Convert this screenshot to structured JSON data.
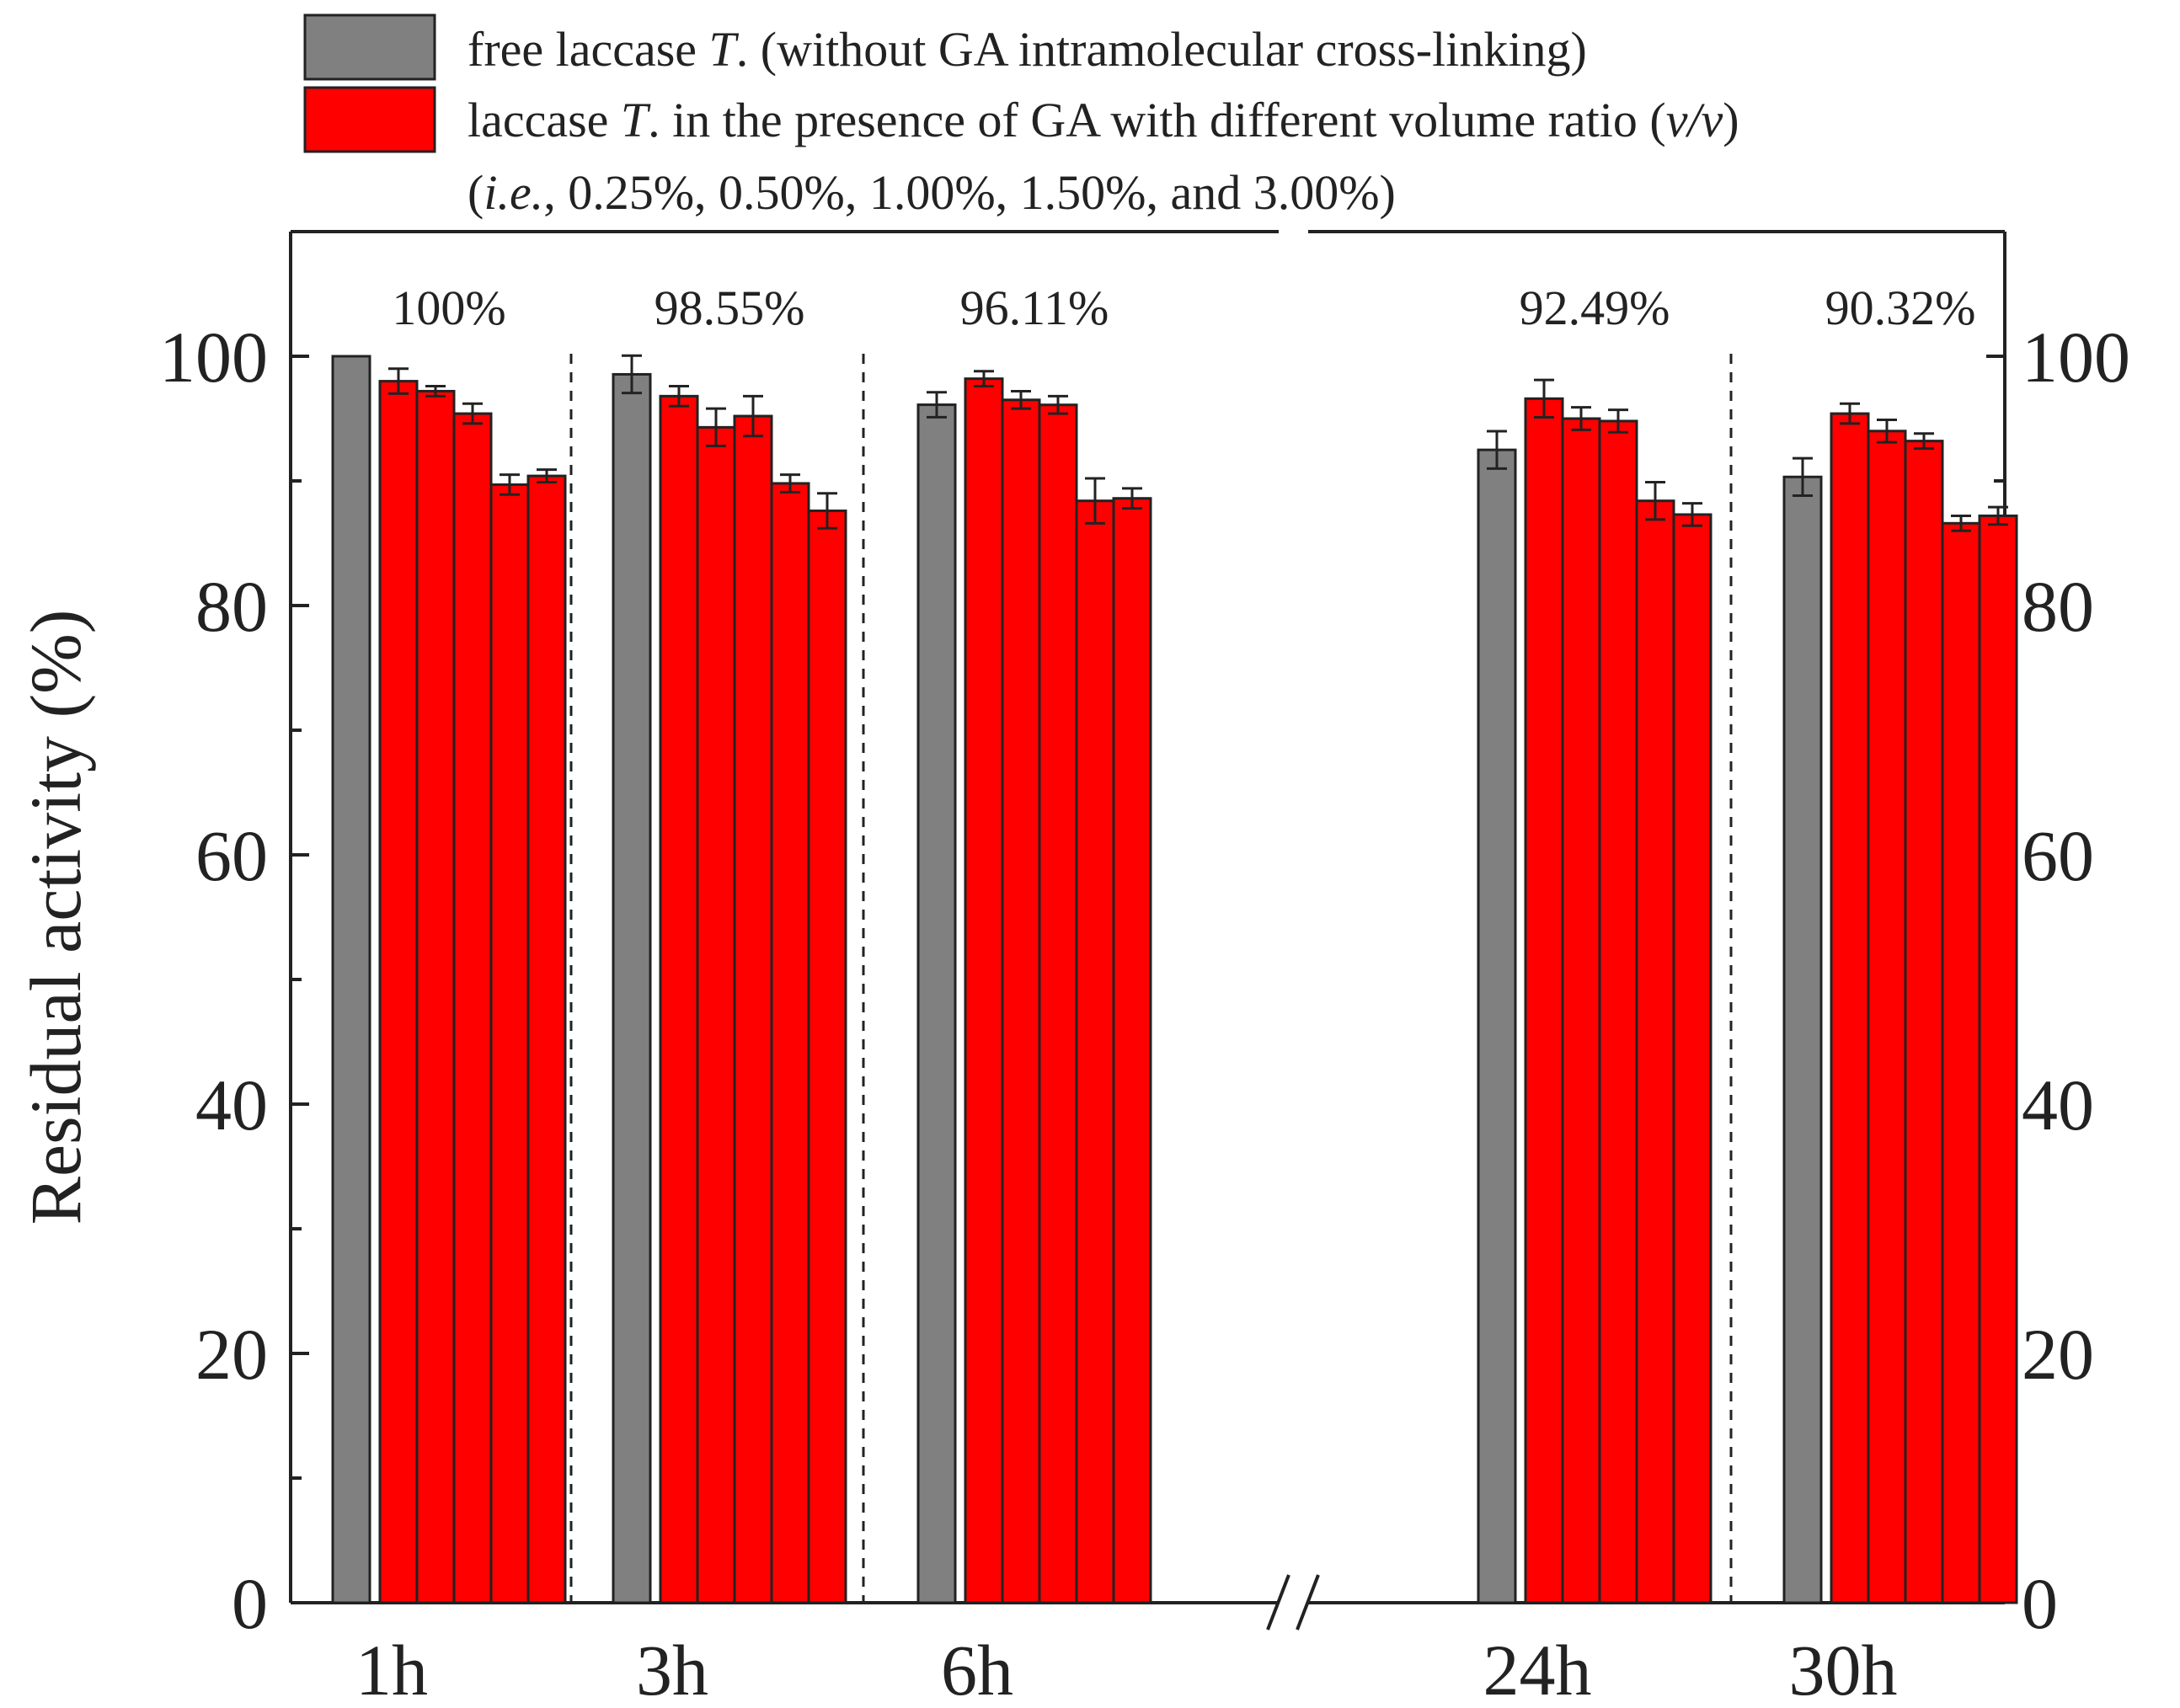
{
  "chart_data": {
    "type": "bar",
    "ylabel": "Residual activity (%)",
    "ylim": [
      0,
      110
    ],
    "yticks": [
      0,
      20,
      40,
      60,
      80,
      100
    ],
    "y_minor_step": 10,
    "categories": [
      "1h",
      "3h",
      "6h",
      "24h",
      "30h"
    ],
    "axis_break_between": [
      "6h",
      "24h"
    ],
    "group_labels": [
      "100%",
      "98.55%",
      "96.11%",
      "92.49%",
      "90.32%"
    ],
    "legend": {
      "free": {
        "color": "#808080",
        "prefix": "free laccase ",
        "italic": "T",
        "suffix": ". (without GA intramolecular cross-linking)"
      },
      "ga": {
        "color": "#ff0000",
        "line1_prefix": "laccase ",
        "line1_italic": "T",
        "line1_mid": ". in the presence of GA with different volume ratio (",
        "line1_italic2": "v/v",
        "line1_end": ")",
        "line2_open": "(",
        "line2_italic": "i.e.",
        "line2_rest": ", 0.25%, 0.50%, 1.00%, 1.50%, and 3.00%)"
      }
    },
    "series": [
      {
        "name": "free laccase T.",
        "color": "#808080",
        "values": [
          100,
          98.55,
          96.11,
          92.49,
          90.32
        ],
        "errors": [
          0,
          1.5,
          1.0,
          1.5,
          1.5
        ]
      },
      {
        "name": "GA 0.25%",
        "color": "#ff0000",
        "values": [
          98.0,
          96.8,
          98.2,
          96.6,
          95.4
        ],
        "errors": [
          1.0,
          0.8,
          0.6,
          1.5,
          0.8
        ]
      },
      {
        "name": "GA 0.50%",
        "color": "#ff0000",
        "values": [
          97.2,
          94.3,
          96.5,
          95.0,
          94.0
        ],
        "errors": [
          0.4,
          1.5,
          0.7,
          0.9,
          0.9
        ]
      },
      {
        "name": "GA 1.00%",
        "color": "#ff0000",
        "values": [
          95.4,
          95.2,
          96.1,
          94.8,
          93.2
        ],
        "errors": [
          0.8,
          1.6,
          0.7,
          0.9,
          0.6
        ]
      },
      {
        "name": "GA 1.50%",
        "color": "#ff0000",
        "values": [
          89.7,
          89.8,
          88.4,
          88.4,
          86.6
        ],
        "errors": [
          0.8,
          0.7,
          1.8,
          1.5,
          0.6
        ]
      },
      {
        "name": "GA 3.00%",
        "color": "#ff0000",
        "values": [
          90.4,
          87.6,
          88.6,
          87.3,
          87.2
        ],
        "errors": [
          0.5,
          1.4,
          0.8,
          0.9,
          0.7
        ]
      }
    ]
  }
}
